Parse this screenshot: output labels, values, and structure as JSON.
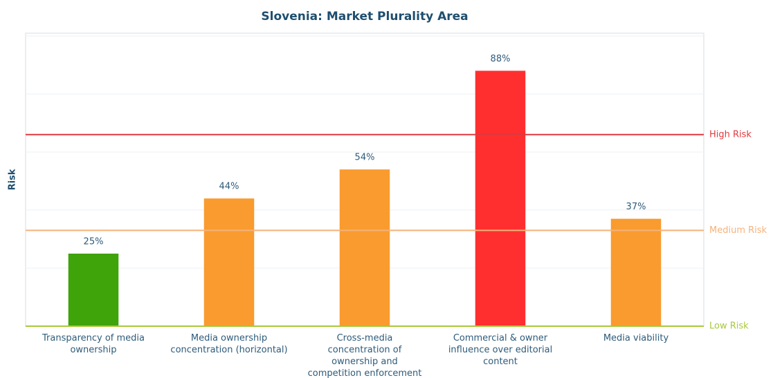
{
  "chart_data": {
    "type": "bar",
    "title": "Slovenia: Market Plurality Area",
    "ylabel": "Risk",
    "categories": [
      "Transparency of media\nownership",
      "Media ownership\nconcentration (horizontal)",
      "Cross-media\nconcentration of\nownership and\ncompetition enforcement",
      "Commercial & owner\ninfluence over editorial\ncontent",
      "Media viability"
    ],
    "values": [
      25,
      44,
      54,
      88,
      37
    ],
    "value_labels": [
      "25%",
      "44%",
      "54%",
      "88%",
      "37%"
    ],
    "colors": [
      "#3fa30a",
      "#f99b2e",
      "#f99b2e",
      "#ff2f2f",
      "#f99b2e"
    ],
    "ylim": [
      0,
      100
    ],
    "yticks": [
      0,
      20,
      40,
      60,
      80,
      100
    ],
    "grid": true,
    "thresholds": [
      {
        "label": "Low Risk",
        "value": 0,
        "color": "#a8c83a"
      },
      {
        "label": "Medium Risk",
        "value": 33,
        "color": "#f5b27a"
      },
      {
        "label": "High Risk",
        "value": 66,
        "color": "#e0393e"
      }
    ]
  }
}
